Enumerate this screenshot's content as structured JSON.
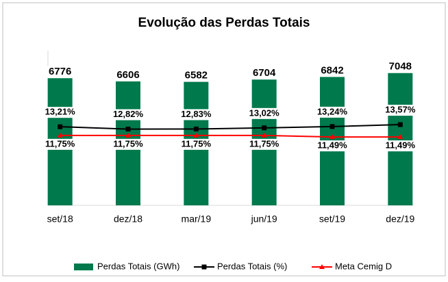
{
  "chart_data": {
    "type": "bar",
    "title": "Evolução das Perdas Totais",
    "categories": [
      "set/18",
      "dez/18",
      "mar/19",
      "jun/19",
      "set/19",
      "dez/19"
    ],
    "series": [
      {
        "name": "Perdas Totais (GWh)",
        "type": "bar",
        "color": "#00794c",
        "values": [
          6776,
          6606,
          6582,
          6704,
          6842,
          7048
        ]
      },
      {
        "name": "Perdas Totais (%)",
        "type": "line",
        "axis": "y2",
        "color": "#000000",
        "marker": "square",
        "values": [
          13.21,
          12.82,
          12.83,
          13.02,
          13.24,
          13.57
        ],
        "value_labels": [
          "13,21%",
          "12,82%",
          "12,83%",
          "13,02%",
          "13,24%",
          "13,57%"
        ]
      },
      {
        "name": "Meta Cemig D",
        "type": "line",
        "axis": "y2",
        "color": "#ff0000",
        "marker": "triangle",
        "values": [
          11.75,
          11.75,
          11.75,
          11.75,
          11.49,
          11.49
        ],
        "value_labels": [
          "11,75%",
          "11,75%",
          "11,75%",
          "11,75%",
          "11,49%",
          "11,49%"
        ]
      }
    ],
    "ylim": [
      0,
      8200
    ],
    "y2lim": [
      0,
      26
    ],
    "legend": "bottom"
  }
}
